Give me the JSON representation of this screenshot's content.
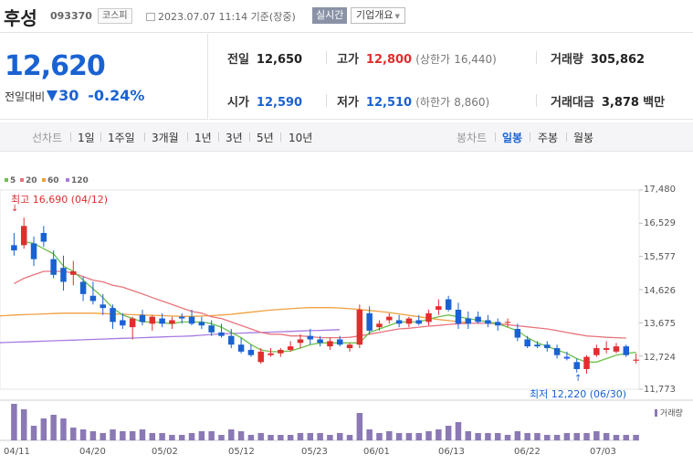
{
  "header": {
    "name": "후성",
    "code": "093370",
    "market": "코스피",
    "datetime": "2023.07.07 11:14 기준(장중)",
    "realtime_label": "실시간",
    "company_label": "기업개요"
  },
  "quote": {
    "price": "12,620",
    "change_label": "전일대비",
    "change": "30",
    "change_pct": "-0.24%"
  },
  "info": {
    "prev_label": "전일",
    "prev": "12,650",
    "high_label": "고가",
    "high": "12,800",
    "upper_label": "(상한가",
    "upper": "16,440)",
    "volume_label": "거래량",
    "volume": "305,862",
    "open_label": "시가",
    "open": "12,590",
    "low_label": "저가",
    "low": "12,510",
    "lower_label": "(하한가",
    "lower": "8,860)",
    "amount_label": "거래대금",
    "amount": "3,878",
    "amount_unit": "백만"
  },
  "tabs": {
    "line_label": "선차트",
    "periods": [
      "1일",
      "1주일",
      "3개월",
      "1년",
      "3년",
      "5년",
      "10년"
    ],
    "candle_label": "봉차트",
    "candle_periods": [
      "일봉",
      "주봉",
      "월봉"
    ],
    "active_candle": "일봉"
  },
  "colors": {
    "up": "#e02e2e",
    "down": "#1a62d2",
    "ma5": "#6cc04a",
    "ma20": "#e8747c",
    "ma60": "#f0a040",
    "ma120": "#a77be0",
    "volume": "#8b79b5"
  },
  "chart_data": {
    "type": "candlestick",
    "legend": [
      "5",
      "20",
      "60",
      "120"
    ],
    "y_ticks": [
      "17,480",
      "16,529",
      "15,577",
      "14,626",
      "13,675",
      "12,724",
      "11,773"
    ],
    "ylim": [
      11773,
      17480
    ],
    "x_ticks": [
      "04/11",
      "04/20",
      "05/02",
      "05/12",
      "05/23",
      "06/01",
      "06/13",
      "06/22",
      "07/03"
    ],
    "high_note": "최고 16,690 (04/12)",
    "low_note": "최저 12,220 (06/30)",
    "volume_label": "거래량",
    "candles": [
      {
        "o": 15900,
        "h": 16250,
        "l": 15600,
        "c": 15750
      },
      {
        "o": 15900,
        "h": 16690,
        "l": 15800,
        "c": 16450
      },
      {
        "o": 15950,
        "h": 16150,
        "l": 15300,
        "c": 15500
      },
      {
        "o": 16250,
        "h": 16450,
        "l": 15850,
        "c": 16000
      },
      {
        "o": 15500,
        "h": 15750,
        "l": 14950,
        "c": 15050
      },
      {
        "o": 15250,
        "h": 15600,
        "l": 14600,
        "c": 14850
      },
      {
        "o": 15050,
        "h": 15450,
        "l": 14750,
        "c": 15150
      },
      {
        "o": 14850,
        "h": 15000,
        "l": 14300,
        "c": 14500
      },
      {
        "o": 14450,
        "h": 14850,
        "l": 14200,
        "c": 14300
      },
      {
        "o": 14200,
        "h": 14500,
        "l": 13900,
        "c": 14100
      },
      {
        "o": 14100,
        "h": 14200,
        "l": 13500,
        "c": 13700
      },
      {
        "o": 13750,
        "h": 13950,
        "l": 13500,
        "c": 13600
      },
      {
        "o": 13550,
        "h": 13850,
        "l": 13200,
        "c": 13800
      },
      {
        "o": 13900,
        "h": 14050,
        "l": 13600,
        "c": 13700
      },
      {
        "o": 13650,
        "h": 13900,
        "l": 13450,
        "c": 13850
      },
      {
        "o": 13800,
        "h": 13950,
        "l": 13550,
        "c": 13650
      },
      {
        "o": 13650,
        "h": 13850,
        "l": 13500,
        "c": 13750
      },
      {
        "o": 13850,
        "h": 13950,
        "l": 13650,
        "c": 13800
      },
      {
        "o": 13850,
        "h": 14050,
        "l": 13600,
        "c": 13650
      },
      {
        "o": 13700,
        "h": 13850,
        "l": 13500,
        "c": 13600
      },
      {
        "o": 13600,
        "h": 13750,
        "l": 13300,
        "c": 13400
      },
      {
        "o": 13400,
        "h": 13650,
        "l": 13250,
        "c": 13300
      },
      {
        "o": 13300,
        "h": 13500,
        "l": 12950,
        "c": 13050
      },
      {
        "o": 13050,
        "h": 13250,
        "l": 12800,
        "c": 12850
      },
      {
        "o": 12900,
        "h": 13050,
        "l": 12700,
        "c": 12750
      },
      {
        "o": 12550,
        "h": 12950,
        "l": 12500,
        "c": 12850
      },
      {
        "o": 12750,
        "h": 12950,
        "l": 12700,
        "c": 12800
      },
      {
        "o": 12800,
        "h": 12950,
        "l": 12700,
        "c": 12900
      },
      {
        "o": 12900,
        "h": 13150,
        "l": 12850,
        "c": 13000
      },
      {
        "o": 13100,
        "h": 13350,
        "l": 12950,
        "c": 13200
      },
      {
        "o": 13300,
        "h": 13500,
        "l": 13050,
        "c": 13200
      },
      {
        "o": 13200,
        "h": 13300,
        "l": 13000,
        "c": 13100
      },
      {
        "o": 13000,
        "h": 13250,
        "l": 12900,
        "c": 13150
      },
      {
        "o": 13200,
        "h": 13300,
        "l": 13000,
        "c": 13050
      },
      {
        "o": 12950,
        "h": 13100,
        "l": 12850,
        "c": 13050
      },
      {
        "o": 13050,
        "h": 14200,
        "l": 12950,
        "c": 14050
      },
      {
        "o": 13950,
        "h": 14150,
        "l": 13350,
        "c": 13450
      },
      {
        "o": 13550,
        "h": 13750,
        "l": 13450,
        "c": 13650
      },
      {
        "o": 13750,
        "h": 13950,
        "l": 13650,
        "c": 13850
      },
      {
        "o": 13750,
        "h": 13900,
        "l": 13550,
        "c": 13650
      },
      {
        "o": 13650,
        "h": 13850,
        "l": 13550,
        "c": 13800
      },
      {
        "o": 13750,
        "h": 13900,
        "l": 13600,
        "c": 13650
      },
      {
        "o": 13700,
        "h": 14050,
        "l": 13600,
        "c": 13950
      },
      {
        "o": 14050,
        "h": 14350,
        "l": 13900,
        "c": 14150
      },
      {
        "o": 14350,
        "h": 14450,
        "l": 14000,
        "c": 14050
      },
      {
        "o": 14050,
        "h": 14250,
        "l": 13500,
        "c": 13650
      },
      {
        "o": 13800,
        "h": 14000,
        "l": 13500,
        "c": 13650
      },
      {
        "o": 13850,
        "h": 14000,
        "l": 13650,
        "c": 13700
      },
      {
        "o": 13750,
        "h": 13900,
        "l": 13550,
        "c": 13650
      },
      {
        "o": 13700,
        "h": 13800,
        "l": 13450,
        "c": 13600
      },
      {
        "o": 13700,
        "h": 13800,
        "l": 13550,
        "c": 13700
      },
      {
        "o": 13500,
        "h": 13650,
        "l": 13150,
        "c": 13250
      },
      {
        "o": 13200,
        "h": 13300,
        "l": 12950,
        "c": 13000
      },
      {
        "o": 13050,
        "h": 13150,
        "l": 12950,
        "c": 13000
      },
      {
        "o": 13050,
        "h": 13150,
        "l": 12850,
        "c": 12950
      },
      {
        "o": 12950,
        "h": 13050,
        "l": 12650,
        "c": 12750
      },
      {
        "o": 12700,
        "h": 12850,
        "l": 12600,
        "c": 12650
      },
      {
        "o": 12550,
        "h": 12650,
        "l": 12250,
        "c": 12350
      },
      {
        "o": 12350,
        "h": 12750,
        "l": 12220,
        "c": 12700
      },
      {
        "o": 12750,
        "h": 13050,
        "l": 12700,
        "c": 12950
      },
      {
        "o": 12900,
        "h": 13150,
        "l": 12800,
        "c": 12950
      },
      {
        "o": 12850,
        "h": 13100,
        "l": 12800,
        "c": 13000
      },
      {
        "o": 13000,
        "h": 13050,
        "l": 12700,
        "c": 12750
      },
      {
        "o": 12590,
        "h": 12800,
        "l": 12510,
        "c": 12620
      }
    ],
    "volumes": [
      100,
      85,
      40,
      60,
      70,
      60,
      35,
      30,
      25,
      20,
      30,
      25,
      25,
      30,
      20,
      20,
      15,
      15,
      20,
      25,
      25,
      15,
      30,
      25,
      15,
      20,
      15,
      15,
      15,
      20,
      20,
      20,
      15,
      20,
      15,
      75,
      30,
      20,
      25,
      20,
      20,
      20,
      25,
      30,
      40,
      50,
      25,
      20,
      20,
      20,
      15,
      25,
      20,
      20,
      15,
      15,
      20,
      20,
      20,
      25,
      20,
      15,
      15,
      15
    ],
    "ma5": [
      16000,
      15950,
      15800,
      15650,
      15300,
      15150,
      14900,
      14650,
      14400,
      14100,
      13900,
      13800,
      13700,
      13700,
      13680,
      13650,
      13700,
      13700,
      13700,
      13650,
      13550,
      13400,
      13250,
      13050,
      12900,
      12850,
      12850,
      12870,
      12950,
      13050,
      13100,
      13100,
      13100,
      13100,
      13100,
      13400,
      13500,
      13600,
      13700,
      13700,
      13700,
      13780,
      13850,
      13900,
      13850,
      13800,
      13750,
      13700,
      13650,
      13550,
      13450,
      13250,
      13100,
      13000,
      12900,
      12800,
      12650,
      12550,
      12550,
      12650,
      12750,
      12800,
      12830
    ],
    "ma20": [
      14800,
      14950,
      15050,
      15150,
      15150,
      15150,
      15100,
      15000,
      14900,
      14850,
      14750,
      14700,
      14600,
      14500,
      14400,
      14300,
      14200,
      14100,
      14000,
      13950,
      13850,
      13800,
      13700,
      13600,
      13500,
      13400,
      13350,
      13350,
      13300,
      13300,
      13280,
      13250,
      13250,
      13250,
      13260,
      13300,
      13350,
      13400,
      13450,
      13500,
      13520,
      13550,
      13580,
      13600,
      13630,
      13650,
      13660,
      13660,
      13660,
      13650,
      13620,
      13590,
      13560,
      13530,
      13500,
      13450,
      13400,
      13350,
      13300,
      13280,
      13260,
      13250,
      13240
    ],
    "ma60": [
      13600,
      13650,
      13700,
      13750,
      13800,
      13850,
      13870,
      13880,
      13900,
      13910,
      13920,
      13930,
      13940,
      13950,
      13950,
      13950,
      13950,
      13940,
      13930,
      13920,
      13910,
      13900,
      13890,
      13880,
      13870,
      13860,
      13860,
      13870,
      13880,
      13900,
      13920,
      13950,
      13980,
      14010,
      14040,
      14060,
      14080,
      14100,
      14110,
      14110,
      14110,
      14100,
      14080,
      14060,
      14030,
      14000,
      13970,
      13930,
      13890,
      13850,
      13810,
      13770,
      13740,
      13710,
      13680
    ],
    "ma120": [
      12800,
      12850,
      12900,
      12940,
      12970,
      13000,
      13020,
      13040,
      13050,
      13060,
      13070,
      13080,
      13090,
      13100,
      13110,
      13120,
      13130,
      13140,
      13150,
      13160,
      13170,
      13180,
      13190,
      13200,
      13210,
      13220,
      13230,
      13240,
      13250,
      13260,
      13270,
      13280,
      13290,
      13300,
      13320,
      13340,
      13360,
      13370,
      13380,
      13390,
      13400,
      13410,
      13420,
      13430,
      13440,
      13450,
      13460,
      13470,
      13480
    ]
  }
}
